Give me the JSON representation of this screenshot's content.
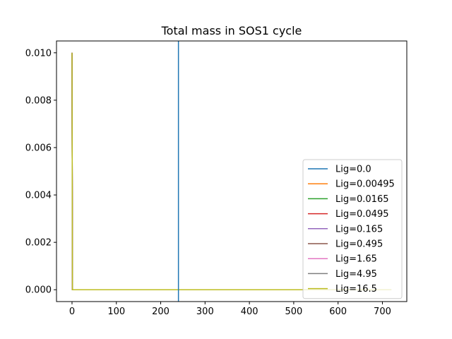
{
  "chart_data": {
    "type": "line",
    "title": "Total mass in SOS1 cycle",
    "xlabel": "",
    "ylabel": "",
    "xlim": [
      -35,
      755
    ],
    "ylim": [
      -0.0005,
      0.0105
    ],
    "x_ticks": [
      0,
      100,
      200,
      300,
      400,
      500,
      600,
      700
    ],
    "x_tick_labels": [
      "0",
      "100",
      "200",
      "300",
      "400",
      "500",
      "600",
      "700"
    ],
    "y_ticks": [
      0.0,
      0.002,
      0.004,
      0.006,
      0.008,
      0.01
    ],
    "y_tick_labels": [
      "0.000",
      "0.002",
      "0.004",
      "0.006",
      "0.008",
      "0.010"
    ],
    "grid": false,
    "legend_position": "lower-right",
    "vertical_line": {
      "x": 240,
      "color": "#1f77b4"
    },
    "series": [
      {
        "name": "Lig=0.0",
        "color": "#1f77b4",
        "x": [
          0,
          1,
          720
        ],
        "y": [
          0.01,
          0.0,
          0.0
        ]
      },
      {
        "name": "Lig=0.00495",
        "color": "#ff7f0e",
        "x": [
          0,
          1,
          720
        ],
        "y": [
          0.01,
          0.0,
          0.0
        ]
      },
      {
        "name": "Lig=0.0165",
        "color": "#2ca02c",
        "x": [
          0,
          1,
          720
        ],
        "y": [
          0.01,
          0.0,
          0.0
        ]
      },
      {
        "name": "Lig=0.0495",
        "color": "#d62728",
        "x": [
          0,
          1,
          720
        ],
        "y": [
          0.01,
          0.0,
          0.0
        ]
      },
      {
        "name": "Lig=0.165",
        "color": "#9467bd",
        "x": [
          0,
          1,
          720
        ],
        "y": [
          0.01,
          0.0,
          0.0
        ]
      },
      {
        "name": "Lig=0.495",
        "color": "#8c564b",
        "x": [
          0,
          1,
          720
        ],
        "y": [
          0.01,
          0.0,
          0.0
        ]
      },
      {
        "name": "Lig=1.65",
        "color": "#e377c2",
        "x": [
          0,
          1,
          720
        ],
        "y": [
          0.01,
          0.0,
          0.0
        ]
      },
      {
        "name": "Lig=4.95",
        "color": "#7f7f7f",
        "x": [
          0,
          1,
          720
        ],
        "y": [
          0.01,
          0.0,
          0.0
        ]
      },
      {
        "name": "Lig=16.5",
        "color": "#bcbd22",
        "x": [
          0,
          1,
          720
        ],
        "y": [
          0.01,
          0.0,
          0.0
        ]
      }
    ]
  }
}
